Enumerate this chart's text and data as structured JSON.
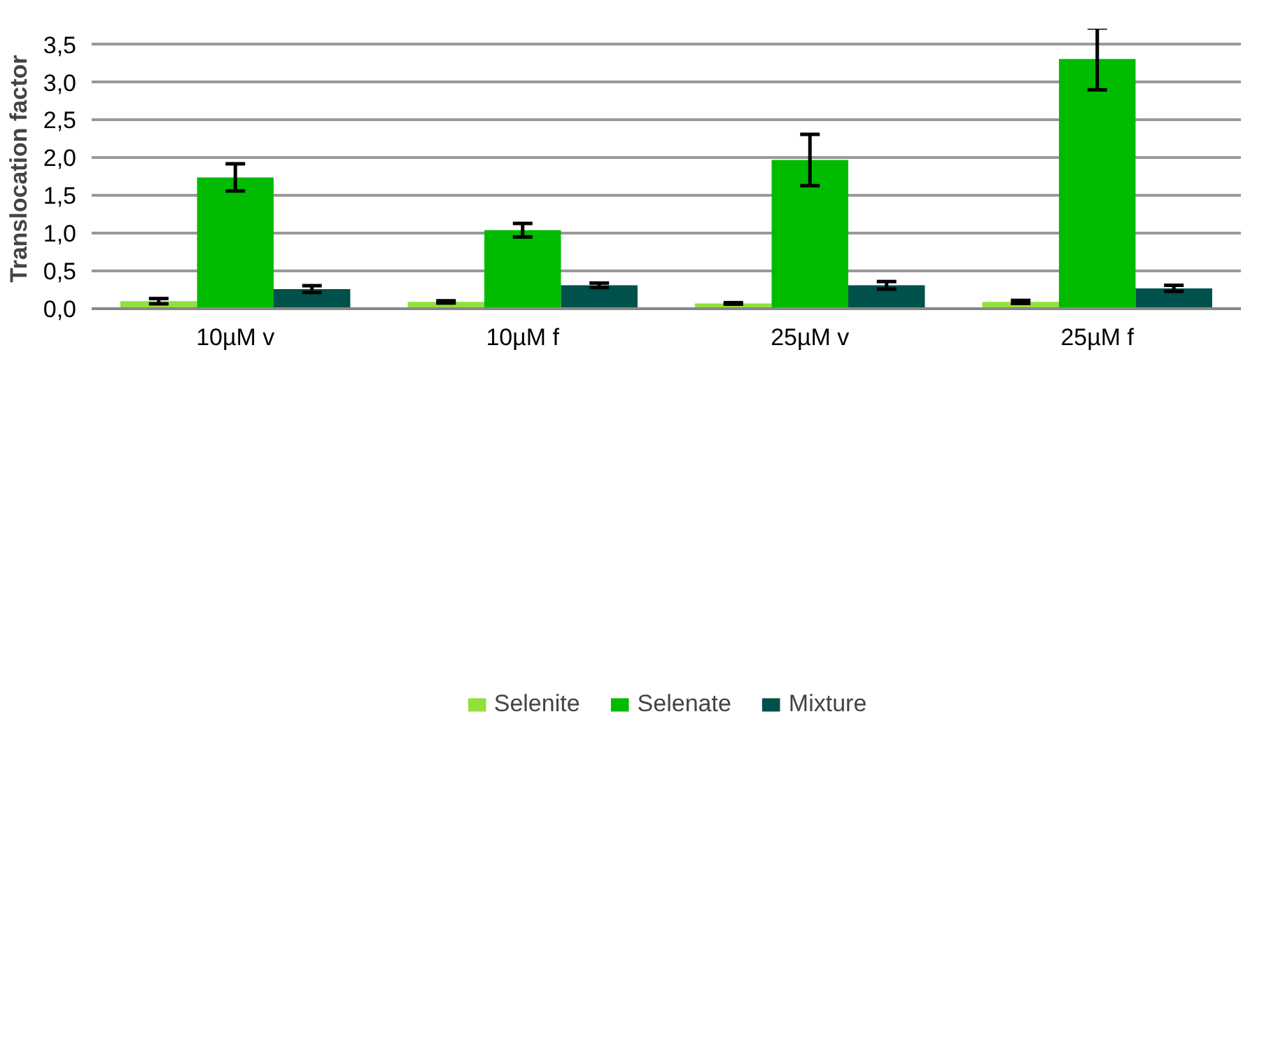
{
  "chart_data": {
    "type": "bar",
    "ylabel": "Translocation factor",
    "categories": [
      "10µM v",
      "10µM f",
      "25µM v",
      "25µM f"
    ],
    "series": [
      {
        "name": "Selenite",
        "color": "#92e03c",
        "values": [
          0.1,
          0.09,
          0.07,
          0.09
        ],
        "errors": [
          0.035,
          0.015,
          0.01,
          0.02
        ]
      },
      {
        "name": "Selenate",
        "color": "#00bb00",
        "values": [
          1.74,
          1.04,
          1.97,
          3.31
        ],
        "errors": [
          0.18,
          0.09,
          0.34,
          0.41
        ]
      },
      {
        "name": "Mixture",
        "color": "#00504c",
        "values": [
          0.26,
          0.31,
          0.31,
          0.27
        ],
        "errors": [
          0.045,
          0.03,
          0.05,
          0.04
        ]
      }
    ],
    "ylim": [
      0,
      3.5
    ],
    "yticks": [
      {
        "value": 0,
        "label": "0,0"
      },
      {
        "value": 0.5,
        "label": "0,5"
      },
      {
        "value": 1,
        "label": "1,0"
      },
      {
        "value": 1.5,
        "label": "1,5"
      },
      {
        "value": 2,
        "label": "2,0"
      },
      {
        "value": 2.5,
        "label": "2,5"
      },
      {
        "value": 3,
        "label": "3,0"
      },
      {
        "value": 3.5,
        "label": "3,5"
      }
    ],
    "grid": "y",
    "legend": "bottom"
  }
}
